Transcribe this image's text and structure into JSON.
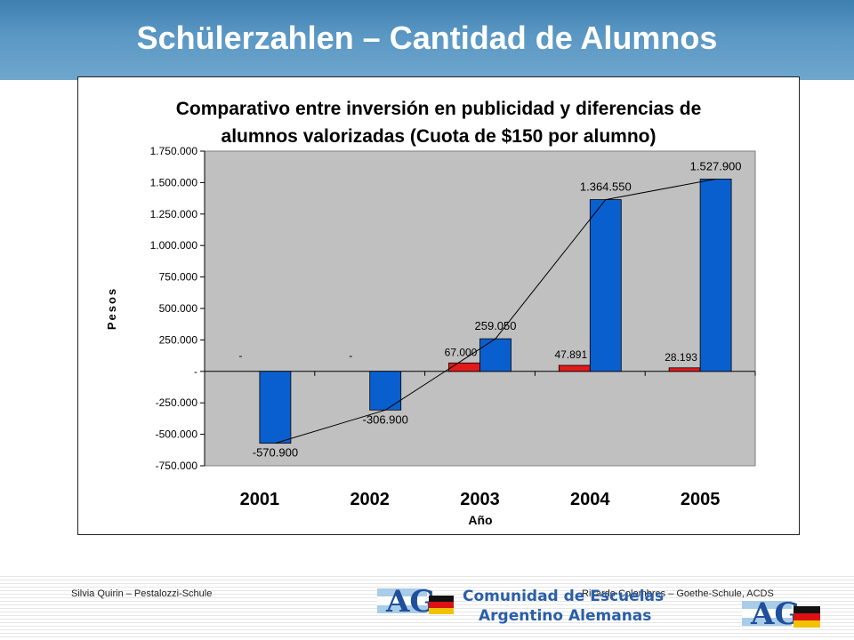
{
  "slide": {
    "title": "Schülerzahlen – Cantidad de Alumnos"
  },
  "footer": {
    "left_text": "Silvia Quirin  – Pestalozzi-Schule",
    "right_text": "Ricardo Colombres – Goethe-Schule, ACDS",
    "center_line1": "Comunidad de Escuelas",
    "center_line2": "Argentino Alemanas",
    "logo_text": "AG"
  },
  "colors": {
    "header": "#4f8fbf",
    "plot_bg": "#c0c0c0",
    "series_red": "#e31a1a",
    "series_blue": "#0a5fcf",
    "logo_blue": "#2a5fa8"
  },
  "chart_data": {
    "type": "bar",
    "title_line1": "Comparativo entre inversión en publicidad y diferencias de",
    "title_line2": "alumnos valorizadas (Cuota de $150 por alumno)",
    "xlabel": "Año",
    "ylabel": "Pesos",
    "categories": [
      "2001",
      "2002",
      "2003",
      "2004",
      "2005"
    ],
    "ylim": [
      -750000,
      1750000
    ],
    "yticks": [
      1750000,
      1500000,
      1250000,
      1000000,
      750000,
      500000,
      250000,
      0,
      -250000,
      -500000,
      -750000
    ],
    "ytick_labels": [
      "1.750.000",
      "1.500.000",
      "1.250.000",
      "1.000.000",
      "750.000",
      "500.000",
      "250.000",
      "-",
      "-250.000",
      "-500.000",
      "-750.000"
    ],
    "series": [
      {
        "color": "#e31a1a",
        "values": [
          0,
          0,
          67000,
          47891,
          28193
        ],
        "labels": [
          "-",
          "-",
          "67.000",
          "47.891",
          "28.193"
        ]
      },
      {
        "color": "#0a5fcf",
        "values": [
          -570900,
          -306900,
          259050,
          1364550,
          1527900
        ],
        "labels": [
          "-570.900",
          "-306.900",
          "259.050",
          "1.364.550",
          "1.527.900"
        ]
      }
    ],
    "trend_line": "second series",
    "grid": false,
    "legend": "none"
  }
}
